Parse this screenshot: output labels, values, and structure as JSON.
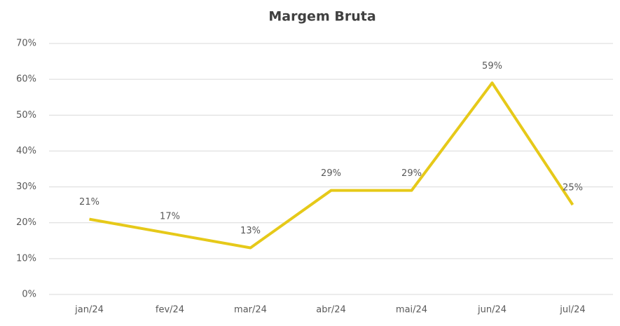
{
  "chart_data": {
    "type": "line",
    "title": "Margem Bruta",
    "categories": [
      "jan/24",
      "fev/24",
      "mar/24",
      "abr/24",
      "mai/24",
      "jun/24",
      "jul/24"
    ],
    "series": [
      {
        "name": "Margem Bruta",
        "color": "#e6c919",
        "values": [
          21,
          17,
          13,
          29,
          29,
          59,
          25
        ],
        "value_labels": [
          "21%",
          "17%",
          "13%",
          "29%",
          "29%",
          "59%",
          "25%"
        ]
      }
    ],
    "ylim": [
      0,
      70
    ],
    "yticks": [
      {
        "value": 0,
        "label": "0%"
      },
      {
        "value": 10,
        "label": "10%"
      },
      {
        "value": 20,
        "label": "20%"
      },
      {
        "value": 30,
        "label": "30%"
      },
      {
        "value": 40,
        "label": "40%"
      },
      {
        "value": 50,
        "label": "50%"
      },
      {
        "value": 60,
        "label": "60%"
      },
      {
        "value": 70,
        "label": "70%"
      }
    ],
    "grid": true
  }
}
